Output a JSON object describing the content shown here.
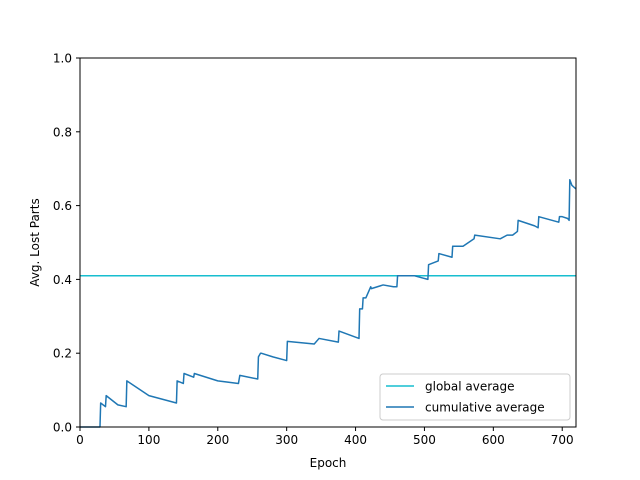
{
  "chart_data": {
    "type": "line",
    "title": "",
    "xlabel": "Epoch",
    "ylabel": "Avg. Lost Parts",
    "xlim": [
      0,
      720
    ],
    "ylim": [
      0,
      1.0
    ],
    "xticks": [
      0,
      100,
      200,
      300,
      400,
      500,
      600,
      700
    ],
    "yticks": [
      0.0,
      0.2,
      0.4,
      0.6,
      0.8,
      1.0
    ],
    "xtick_labels": [
      "0",
      "100",
      "200",
      "300",
      "400",
      "500",
      "600",
      "700"
    ],
    "ytick_labels": [
      "0.0",
      "0.2",
      "0.4",
      "0.6",
      "0.8",
      "1.0"
    ],
    "grid": false,
    "legend_position": "bottom-right",
    "series": [
      {
        "name": "global average",
        "color": "#17becf",
        "x": [
          0,
          720
        ],
        "y": [
          0.41,
          0.41
        ]
      },
      {
        "name": "cumulative average",
        "color": "#1f77b4",
        "x": [
          0,
          28,
          29,
          30,
          37,
          38,
          55,
          67,
          68,
          100,
          140,
          141,
          150,
          151,
          165,
          166,
          200,
          230,
          232,
          258,
          259,
          262,
          263,
          280,
          300,
          301,
          340,
          347,
          375,
          376,
          405,
          406,
          410,
          411,
          415,
          422,
          423,
          440,
          455,
          460,
          461,
          470,
          485,
          495,
          505,
          506,
          520,
          521,
          540,
          541,
          555,
          556,
          572,
          573,
          610,
          620,
          628,
          635,
          636,
          660,
          665,
          666,
          695,
          696,
          700,
          708,
          710,
          711,
          714,
          720
        ],
        "y": [
          0.0,
          0.0,
          0.0,
          0.065,
          0.055,
          0.085,
          0.06,
          0.055,
          0.125,
          0.085,
          0.065,
          0.125,
          0.118,
          0.145,
          0.135,
          0.145,
          0.125,
          0.118,
          0.14,
          0.13,
          0.19,
          0.2,
          0.2,
          0.19,
          0.18,
          0.232,
          0.225,
          0.24,
          0.23,
          0.26,
          0.24,
          0.32,
          0.32,
          0.35,
          0.35,
          0.38,
          0.375,
          0.385,
          0.38,
          0.38,
          0.41,
          0.41,
          0.41,
          0.405,
          0.4,
          0.44,
          0.45,
          0.47,
          0.46,
          0.49,
          0.49,
          0.49,
          0.51,
          0.52,
          0.51,
          0.52,
          0.52,
          0.53,
          0.56,
          0.545,
          0.54,
          0.57,
          0.555,
          0.57,
          0.57,
          0.565,
          0.56,
          0.67,
          0.655,
          0.645
        ]
      }
    ]
  }
}
